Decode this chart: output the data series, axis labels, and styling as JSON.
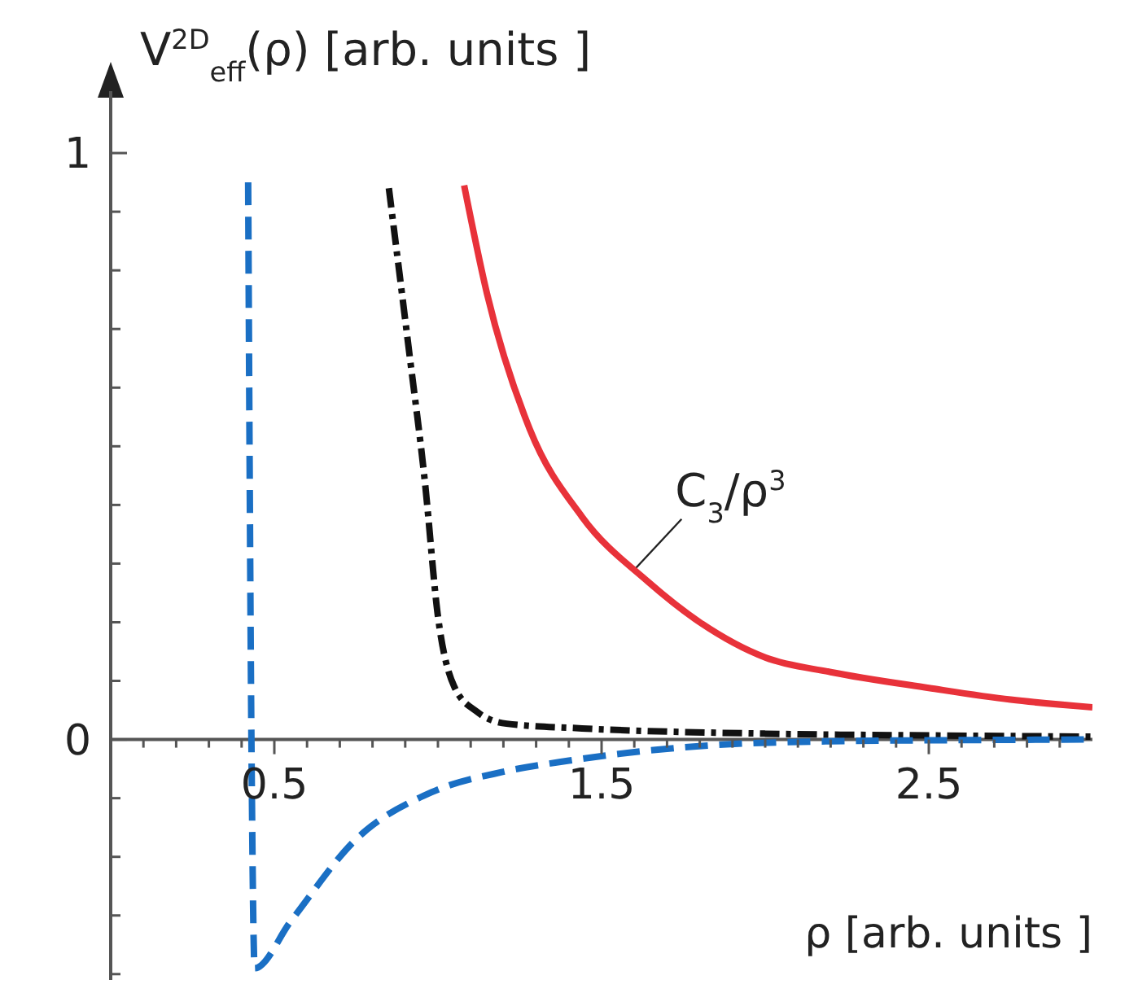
{
  "chart_data": {
    "type": "line",
    "ylabel": "V$^{2D}$$_{eff}$(ρ) [arb. units ]",
    "xlabel": "ρ [arb. units ]",
    "xlim": [
      0,
      3.0
    ],
    "ylim": [
      -0.41,
      1.1
    ],
    "xticks": [
      {
        "value": 0.1,
        "label": null
      },
      {
        "value": 0.2,
        "label": null
      },
      {
        "value": 0.3,
        "label": null
      },
      {
        "value": 0.4,
        "label": null
      },
      0.5,
      {
        "value": 0.6,
        "label": null
      },
      {
        "value": 0.7,
        "label": null
      },
      {
        "value": 0.8,
        "label": null
      },
      {
        "value": 0.9,
        "label": null
      },
      {
        "value": 1.0,
        "label": null
      },
      {
        "value": 1.1,
        "label": null
      },
      {
        "value": 1.2,
        "label": null
      },
      {
        "value": 1.3,
        "label": null
      },
      {
        "value": 1.4,
        "label": null
      },
      1.5,
      {
        "value": 1.6,
        "label": null
      },
      {
        "value": 1.7,
        "label": null
      },
      {
        "value": 1.8,
        "label": null
      },
      {
        "value": 1.9,
        "label": null
      },
      {
        "value": 2.0,
        "label": null
      },
      {
        "value": 2.1,
        "label": null
      },
      {
        "value": 2.2,
        "label": null
      },
      {
        "value": 2.3,
        "label": null
      },
      {
        "value": 2.4,
        "label": null
      },
      2.5,
      {
        "value": 2.6,
        "label": null
      },
      {
        "value": 2.7,
        "label": null
      },
      {
        "value": 2.8,
        "label": null
      },
      {
        "value": 2.9,
        "label": null
      }
    ],
    "yticks": [
      {
        "value": -0.4,
        "label": null
      },
      {
        "value": -0.3,
        "label": null
      },
      {
        "value": -0.2,
        "label": null
      },
      {
        "value": -0.1,
        "label": null
      },
      0,
      {
        "value": 0.1,
        "label": null
      },
      {
        "value": 0.2,
        "label": null
      },
      {
        "value": 0.3,
        "label": null
      },
      {
        "value": 0.4,
        "label": null
      },
      {
        "value": 0.5,
        "label": null
      },
      {
        "value": 0.6,
        "label": null
      },
      {
        "value": 0.7,
        "label": null
      },
      {
        "value": 0.8,
        "label": null
      },
      {
        "value": 0.9,
        "label": null
      },
      1
    ],
    "marker": "none",
    "series": [
      {
        "color": "#e8323a",
        "line_style": "solid",
        "x": [
          1.08,
          1.15,
          1.28,
          1.44,
          1.64,
          1.8,
          2.0,
          2.2,
          2.5,
          2.75,
          3.0
        ],
        "values": [
          0.945,
          0.76,
          0.53,
          0.38,
          0.27,
          0.2,
          0.14,
          0.115,
          0.088,
          0.068,
          0.055
        ]
      },
      {
        "color": "#111111",
        "line_style": "dashdot",
        "x": [
          0.85,
          0.91,
          0.96,
          1.0,
          1.05,
          1.12,
          1.21,
          1.44,
          2.0,
          2.5,
          3.0
        ],
        "values": [
          0.94,
          0.67,
          0.44,
          0.21,
          0.09,
          0.047,
          0.027,
          0.019,
          0.01,
          0.007,
          0.005
        ]
      },
      {
        "color": "#1a6fc4",
        "line_style": "dashed",
        "x": [
          0.42,
          0.43,
          0.44,
          0.55,
          0.75,
          0.98,
          1.2,
          1.4,
          1.83,
          2.2,
          2.6,
          3.0
        ],
        "values": [
          0.95,
          0.0,
          -0.39,
          -0.31,
          -0.17,
          -0.09,
          -0.055,
          -0.036,
          -0.01,
          -0.003,
          -0.001,
          0.0
        ]
      }
    ],
    "annotations": [
      "C$_{3}$/ρ$^{3}$"
    ]
  }
}
